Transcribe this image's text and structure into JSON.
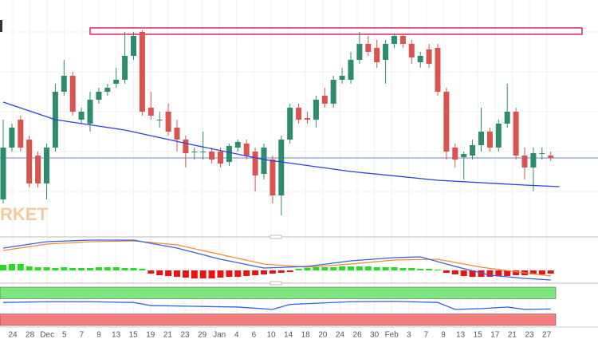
{
  "chart_data": {
    "type": "candlestick",
    "watermark": "RKET",
    "x_labels": [
      "24",
      "28",
      "Dec",
      "5",
      "7",
      "9",
      "13",
      "15",
      "19",
      "21",
      "23",
      "29",
      "Jan",
      "4",
      "6",
      "10",
      "14",
      "18",
      "20",
      "24",
      "26",
      "30",
      "Feb",
      "3",
      "7",
      "9",
      "13",
      "15",
      "17",
      "21",
      "23",
      "27"
    ],
    "ylim": [
      5,
      300
    ],
    "up_color": "#2e8b6e",
    "down_color": "#d9534f",
    "open": [
      50,
      115,
      150,
      125,
      105,
      70,
      115,
      185,
      205,
      150,
      145,
      175,
      185,
      195,
      200,
      230,
      260,
      165,
      150,
      160,
      140,
      125,
      110,
      110,
      110,
      110,
      97,
      115,
      120,
      110,
      82,
      100,
      55,
      125,
      165,
      152,
      150,
      180,
      170,
      200,
      200,
      225,
      245,
      240,
      225,
      245,
      255,
      245,
      222,
      238,
      240,
      185,
      115,
      103,
      105,
      118,
      135,
      115,
      145,
      160,
      105,
      90,
      108,
      105
    ],
    "high": [
      150,
      145,
      155,
      130,
      110,
      120,
      195,
      225,
      210,
      165,
      185,
      190,
      195,
      215,
      260,
      260,
      262,
      185,
      160,
      170,
      150,
      130,
      115,
      135,
      115,
      115,
      120,
      125,
      125,
      115,
      120,
      105,
      130,
      170,
      170,
      160,
      180,
      190,
      205,
      215,
      235,
      260,
      255,
      250,
      250,
      258,
      258,
      250,
      235,
      245,
      245,
      190,
      120,
      110,
      125,
      165,
      140,
      150,
      195,
      165,
      115,
      115,
      115,
      110
    ],
    "low": [
      45,
      110,
      110,
      65,
      65,
      50,
      110,
      180,
      155,
      145,
      135,
      170,
      180,
      190,
      195,
      225,
      155,
      150,
      140,
      130,
      110,
      90,
      100,
      100,
      95,
      90,
      92,
      110,
      100,
      60,
      75,
      45,
      30,
      120,
      145,
      145,
      140,
      165,
      165,
      195,
      195,
      220,
      230,
      215,
      195,
      240,
      240,
      220,
      215,
      215,
      180,
      100,
      90,
      75,
      100,
      110,
      110,
      110,
      140,
      100,
      75,
      60,
      100,
      98
    ],
    "close": [
      115,
      140,
      115,
      70,
      70,
      115,
      185,
      205,
      160,
      160,
      175,
      185,
      190,
      200,
      230,
      255,
      160,
      155,
      150,
      135,
      125,
      108,
      110,
      110,
      100,
      95,
      117,
      122,
      105,
      80,
      115,
      55,
      125,
      165,
      150,
      150,
      175,
      170,
      200,
      205,
      225,
      245,
      235,
      222,
      245,
      255,
      245,
      228,
      230,
      220,
      185,
      110,
      100,
      107,
      118,
      135,
      115,
      145,
      160,
      105,
      90,
      108,
      108,
      102
    ],
    "ma": {
      "color": "#2a3fe0",
      "x": [
        0,
        6,
        14,
        22,
        30,
        40,
        50,
        60,
        64
      ],
      "values": [
        172,
        150,
        137,
        118,
        100,
        85,
        74,
        68,
        66
      ]
    },
    "last_price": 102,
    "zone": [
      257,
      265
    ],
    "macd": {
      "ylim": [
        -16,
        42
      ],
      "histogram": [
        7,
        8,
        8,
        5,
        4,
        4,
        3,
        4,
        3,
        3,
        3,
        4,
        4,
        4,
        3,
        3,
        2,
        -4,
        -6,
        -7,
        -8,
        -9,
        -10,
        -10,
        -10,
        -9,
        -8,
        -8,
        -7,
        -6,
        -5,
        -4,
        -3,
        -2,
        2,
        3,
        4,
        4,
        4,
        5,
        5,
        5,
        5,
        4,
        4,
        4,
        3,
        3,
        2,
        2,
        1,
        -3,
        -5,
        -7,
        -8,
        -8,
        -8,
        -7,
        -7,
        -6,
        -6,
        -5,
        -5,
        -4
      ],
      "line": {
        "color": "#3a5ee0",
        "x": [
          0,
          5,
          10,
          15,
          20,
          25,
          30,
          35,
          40,
          45,
          48,
          52,
          56,
          60,
          63
        ],
        "values": [
          28,
          36,
          38,
          38,
          28,
          14,
          3,
          5,
          12,
          16,
          17,
          5,
          -6,
          -10,
          -12
        ]
      },
      "signal": {
        "color": "#f08a3c",
        "x": [
          0,
          5,
          10,
          15,
          20,
          25,
          30,
          35,
          40,
          45,
          50,
          55,
          60,
          63
        ],
        "values": [
          25,
          33,
          36,
          37,
          32,
          20,
          8,
          4,
          8,
          13,
          14,
          4,
          -3,
          -7
        ]
      }
    },
    "rsi": {
      "ylim": [
        0,
        100
      ],
      "zones": [
        [
          70,
          100,
          "#7ee57e"
        ],
        [
          0,
          30,
          "#f47c7c"
        ]
      ],
      "line": {
        "color": "#3a5ee0",
        "x": [
          0,
          5,
          10,
          15,
          17,
          22,
          27,
          31,
          33,
          40,
          45,
          50,
          52,
          55,
          58,
          60,
          63
        ],
        "values": [
          60,
          62,
          62,
          60,
          52,
          50,
          48,
          42,
          55,
          62,
          63,
          60,
          42,
          44,
          48,
          42,
          43
        ]
      }
    }
  }
}
